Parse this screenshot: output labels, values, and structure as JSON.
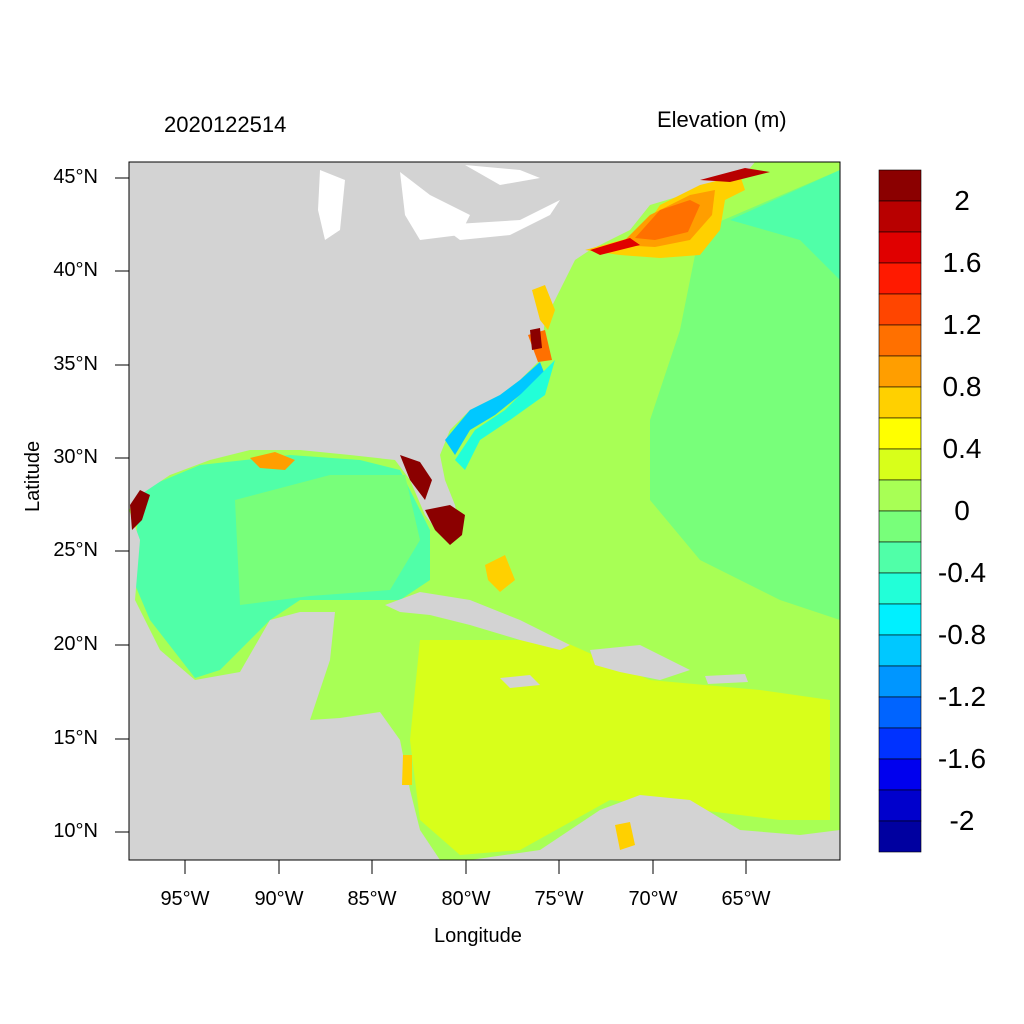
{
  "map": {
    "timestamp": "2020122514",
    "variable": "Elevation (m)",
    "xlabel": "Longitude",
    "ylabel": "Latitude",
    "lat_ticks": [
      "45°N",
      "40°N",
      "35°N",
      "30°N",
      "25°N",
      "20°N",
      "15°N",
      "10°N"
    ],
    "lon_ticks": [
      "95°W",
      "90°W",
      "85°W",
      "80°W",
      "75°W",
      "70°W",
      "65°W"
    ],
    "extent": {
      "lon_min": -98,
      "lon_max": -60,
      "lat_min": 8.5,
      "lat_max": 46
    },
    "land_color": "#d3d3d3"
  },
  "colorbar": {
    "labels": [
      "2",
      "1.6",
      "1.2",
      "0.8",
      "0.4",
      "0",
      "-0.4",
      "-0.8",
      "-1.2",
      "-1.6",
      "-2"
    ],
    "colors_top_to_bottom": [
      "#8b0000",
      "#b80000",
      "#e00000",
      "#ff1a00",
      "#ff4500",
      "#ff7000",
      "#ff9e00",
      "#ffd000",
      "#ffff00",
      "#d8ff1a",
      "#a8ff55",
      "#78ff7a",
      "#50ffa8",
      "#22ffd8",
      "#00f0ff",
      "#00c8ff",
      "#0096ff",
      "#0064ff",
      "#0032ff",
      "#0000ee",
      "#0000cc",
      "#0000a0"
    ]
  }
}
